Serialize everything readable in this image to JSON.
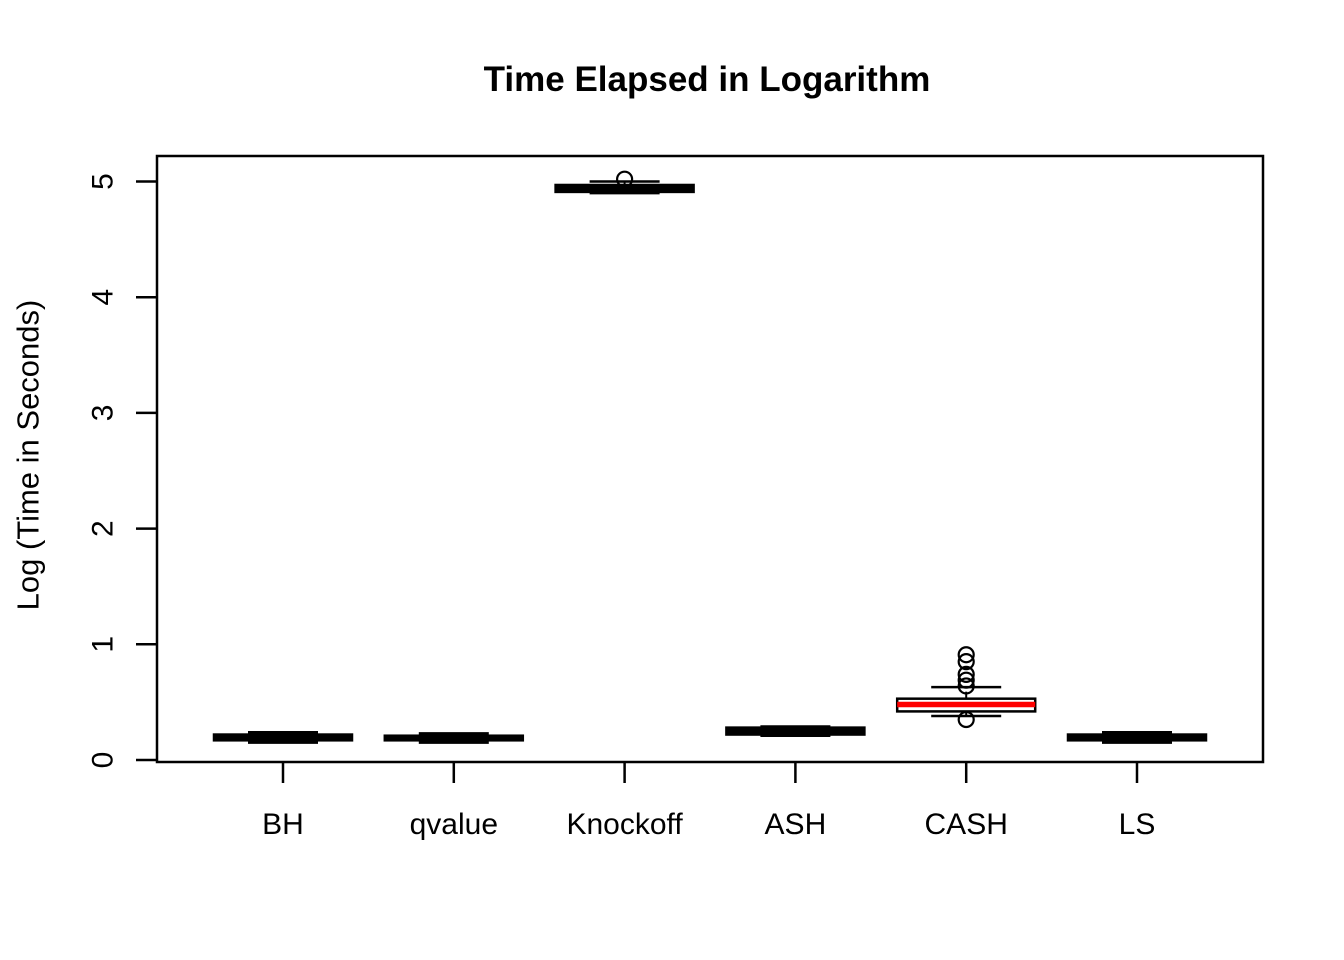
{
  "title": "Time Elapsed in Logarithm",
  "chart_data": {
    "type": "boxplot",
    "title": "Time Elapsed in Logarithm",
    "xlabel": "",
    "ylabel": "Log (Time in Seconds)",
    "categories": [
      "BH",
      "qvalue",
      "Knockoff",
      "ASH",
      "CASH",
      "LS"
    ],
    "yticks": [
      "0",
      "1",
      "2",
      "3",
      "4",
      "5"
    ],
    "ylim": [
      -0.02,
      5.24
    ],
    "grid": false,
    "legend": "none",
    "series": [
      {
        "name": "BH",
        "whisker_low": 0.15,
        "q1": 0.17,
        "median": 0.19,
        "q3": 0.22,
        "whisker_high": 0.24,
        "outliers": [],
        "median_color": "#000000"
      },
      {
        "name": "qvalue",
        "whisker_low": 0.15,
        "q1": 0.17,
        "median": 0.19,
        "q3": 0.21,
        "whisker_high": 0.23,
        "outliers": [],
        "median_color": "#000000"
      },
      {
        "name": "Knockoff",
        "whisker_low": 4.9,
        "q1": 4.91,
        "median": 4.94,
        "q3": 4.97,
        "whisker_high": 5.0,
        "outliers": [
          5.02
        ],
        "median_color": "#000000"
      },
      {
        "name": "ASH",
        "whisker_low": 0.21,
        "q1": 0.22,
        "median": 0.25,
        "q3": 0.28,
        "whisker_high": 0.29,
        "outliers": [],
        "median_color": "#000000"
      },
      {
        "name": "CASH",
        "whisker_low": 0.38,
        "q1": 0.42,
        "median": 0.48,
        "q3": 0.53,
        "whisker_high": 0.63,
        "outliers": [
          0.91,
          0.85,
          0.74,
          0.69,
          0.64,
          0.35
        ],
        "median_color": "#ff0000"
      },
      {
        "name": "LS",
        "whisker_low": 0.15,
        "q1": 0.17,
        "median": 0.19,
        "q3": 0.22,
        "whisker_high": 0.24,
        "outliers": [],
        "median_color": "#000000"
      }
    ],
    "colors": {
      "stroke": "#000000",
      "median_default": "#000000",
      "median_highlight": "#ff0000",
      "background": "#ffffff"
    }
  }
}
